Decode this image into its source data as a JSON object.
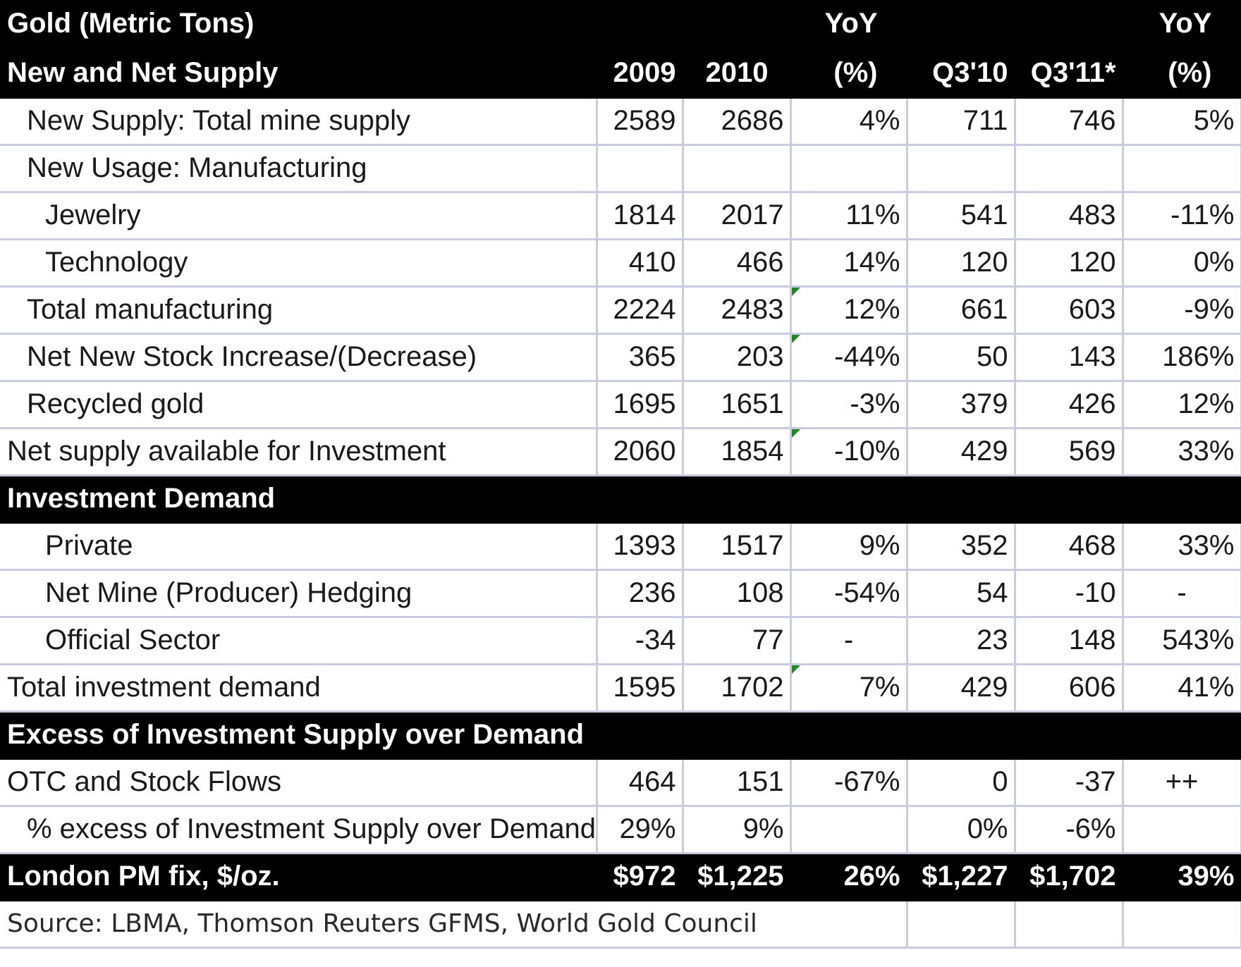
{
  "chart_data": {
    "type": "table",
    "columns": [
      "",
      "2009",
      "2010",
      "YoY (%)",
      "Q3'10",
      "Q3'11*",
      "YoY (%)"
    ],
    "header": {
      "row1": [
        "Gold (Metric Tons)",
        "",
        "",
        "YoY",
        "",
        "",
        "YoY"
      ],
      "row2": [
        "New and Net Supply",
        "2009",
        "2010",
        "(%)",
        "Q3'10",
        "Q3'11*",
        "(%)"
      ]
    },
    "rows": [
      [
        "New Supply: Total mine supply",
        "2589",
        "2686",
        "4%",
        "711",
        "746",
        "5%"
      ],
      [
        "New Usage: Manufacturing",
        "",
        "",
        "",
        "",
        "",
        ""
      ],
      [
        "Jewelry",
        "1814",
        "2017",
        "11%",
        "541",
        "483",
        "-11%"
      ],
      [
        "Technology",
        "410",
        "466",
        "14%",
        "120",
        "120",
        "0%"
      ],
      [
        "Total manufacturing",
        "2224",
        "2483",
        "12%",
        "661",
        "603",
        "-9%"
      ],
      [
        "Net New Stock Increase/(Decrease)",
        "365",
        "203",
        "-44%",
        "50",
        "143",
        "186%"
      ],
      [
        "Recycled gold",
        "1695",
        "1651",
        "-3%",
        "379",
        "426",
        "12%"
      ],
      [
        "Net supply available for Investment",
        "2060",
        "1854",
        "-10%",
        "429",
        "569",
        "33%"
      ],
      [
        "Investment Demand",
        "",
        "",
        "",
        "",
        "",
        ""
      ],
      [
        "Private",
        "1393",
        "1517",
        "9%",
        "352",
        "468",
        "33%"
      ],
      [
        "Net Mine (Producer) Hedging",
        "236",
        "108",
        "-54%",
        "54",
        "-10",
        "-"
      ],
      [
        "Official Sector",
        "-34",
        "77",
        "-",
        "23",
        "148",
        "543%"
      ],
      [
        "Total investment demand",
        "1595",
        "1702",
        "7%",
        "429",
        "606",
        "41%"
      ],
      [
        "Excess of Investment Supply over Demand",
        "",
        "",
        "",
        "",
        "",
        ""
      ],
      [
        "OTC and Stock Flows",
        "464",
        "151",
        "-67%",
        "0",
        "-37",
        "++"
      ],
      [
        "% excess of Investment Supply over Demand",
        "29%",
        "9%",
        "",
        "0%",
        "-6%",
        ""
      ],
      [
        "London PM fix, $/oz.",
        "$972",
        "$1,225",
        "26%",
        "$1,227",
        "$1,702",
        "39%"
      ],
      [
        "Source:  LBMA, Thomson Reuters GFMS, World Gold Council",
        "",
        "",
        "",
        "",
        "",
        ""
      ]
    ]
  },
  "colors": {
    "header_bg": "#000000",
    "header_text": "#ffffff",
    "grid_line": "#c9cbe0",
    "comment_flag": "#1c8a1c"
  }
}
